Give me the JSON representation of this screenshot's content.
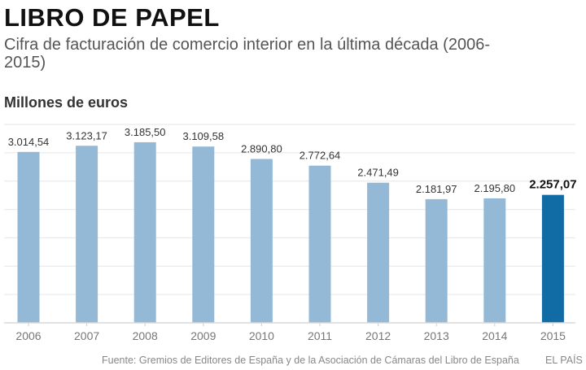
{
  "title": "LIBRO DE PAPEL",
  "subtitle": "Cifra de facturación de comercio interior en la última década (2006-2015)",
  "unit_label": "Millones de euros",
  "source": "Fuente: Gremios de Editores de España y de la Asociación de Cámaras del Libro de España",
  "brand": "EL PAÍS",
  "colors": {
    "bar": "#93b9d6",
    "highlight": "#116ca5",
    "grid": "#e6e6e6"
  },
  "chart_data": {
    "type": "bar",
    "categories": [
      "2006",
      "2007",
      "2008",
      "2009",
      "2010",
      "2011",
      "2012",
      "2013",
      "2014",
      "2015"
    ],
    "values": [
      3014.54,
      3123.17,
      3185.5,
      3109.58,
      2890.8,
      2772.64,
      2471.49,
      2181.97,
      2195.8,
      2257.07
    ],
    "data_labels": [
      "3.014,54",
      "3.123,17",
      "3.185,50",
      "3.109,58",
      "2.890,80",
      "2.772,64",
      "2.471,49",
      "2.181,97",
      "2.195,80",
      "2.257,07"
    ],
    "highlight_index": 9,
    "ylabel": "Millones de euros",
    "ylim": [
      0,
      3500
    ],
    "grid": true,
    "grid_step": 500,
    "y_tick_labels_shown": false
  }
}
